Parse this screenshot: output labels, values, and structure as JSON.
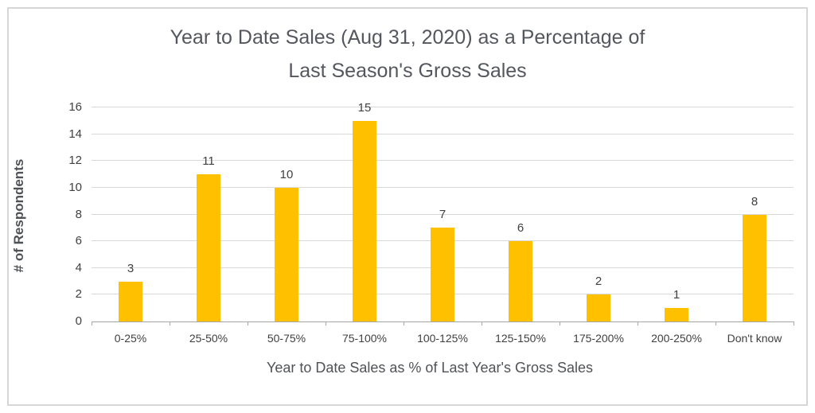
{
  "chart_data": {
    "type": "bar",
    "title": "Year to Date Sales (Aug 31, 2020) as a Percentage of Last Season's Gross Sales",
    "title_lines": [
      "Year to Date Sales (Aug 31, 2020) as a Percentage of",
      "Last Season's Gross Sales"
    ],
    "categories": [
      "0-25%",
      "25-50%",
      "50-75%",
      "75-100%",
      "100-125%",
      "125-150%",
      "175-200%",
      "200-250%",
      "Don't know"
    ],
    "values": [
      3,
      11,
      10,
      15,
      7,
      6,
      2,
      1,
      8
    ],
    "xlabel": "Year to Date Sales as % of Last Year's Gross Sales",
    "ylabel": "# of Respondents",
    "ylim": [
      0,
      16
    ],
    "yticks": [
      0,
      2,
      4,
      6,
      8,
      10,
      12,
      14,
      16
    ],
    "grid": true,
    "legend_position": "none",
    "data_labels": true,
    "colors": {
      "bar": "#FFC000",
      "gridline": "#D9D9D9",
      "axis_line": "#A6A6A6",
      "title_text": "#54575E",
      "tick_text": "#404040",
      "data_label_text": "#404040",
      "axis_title_text": "#4F5256",
      "frame_border": "#D6D6D6"
    }
  }
}
